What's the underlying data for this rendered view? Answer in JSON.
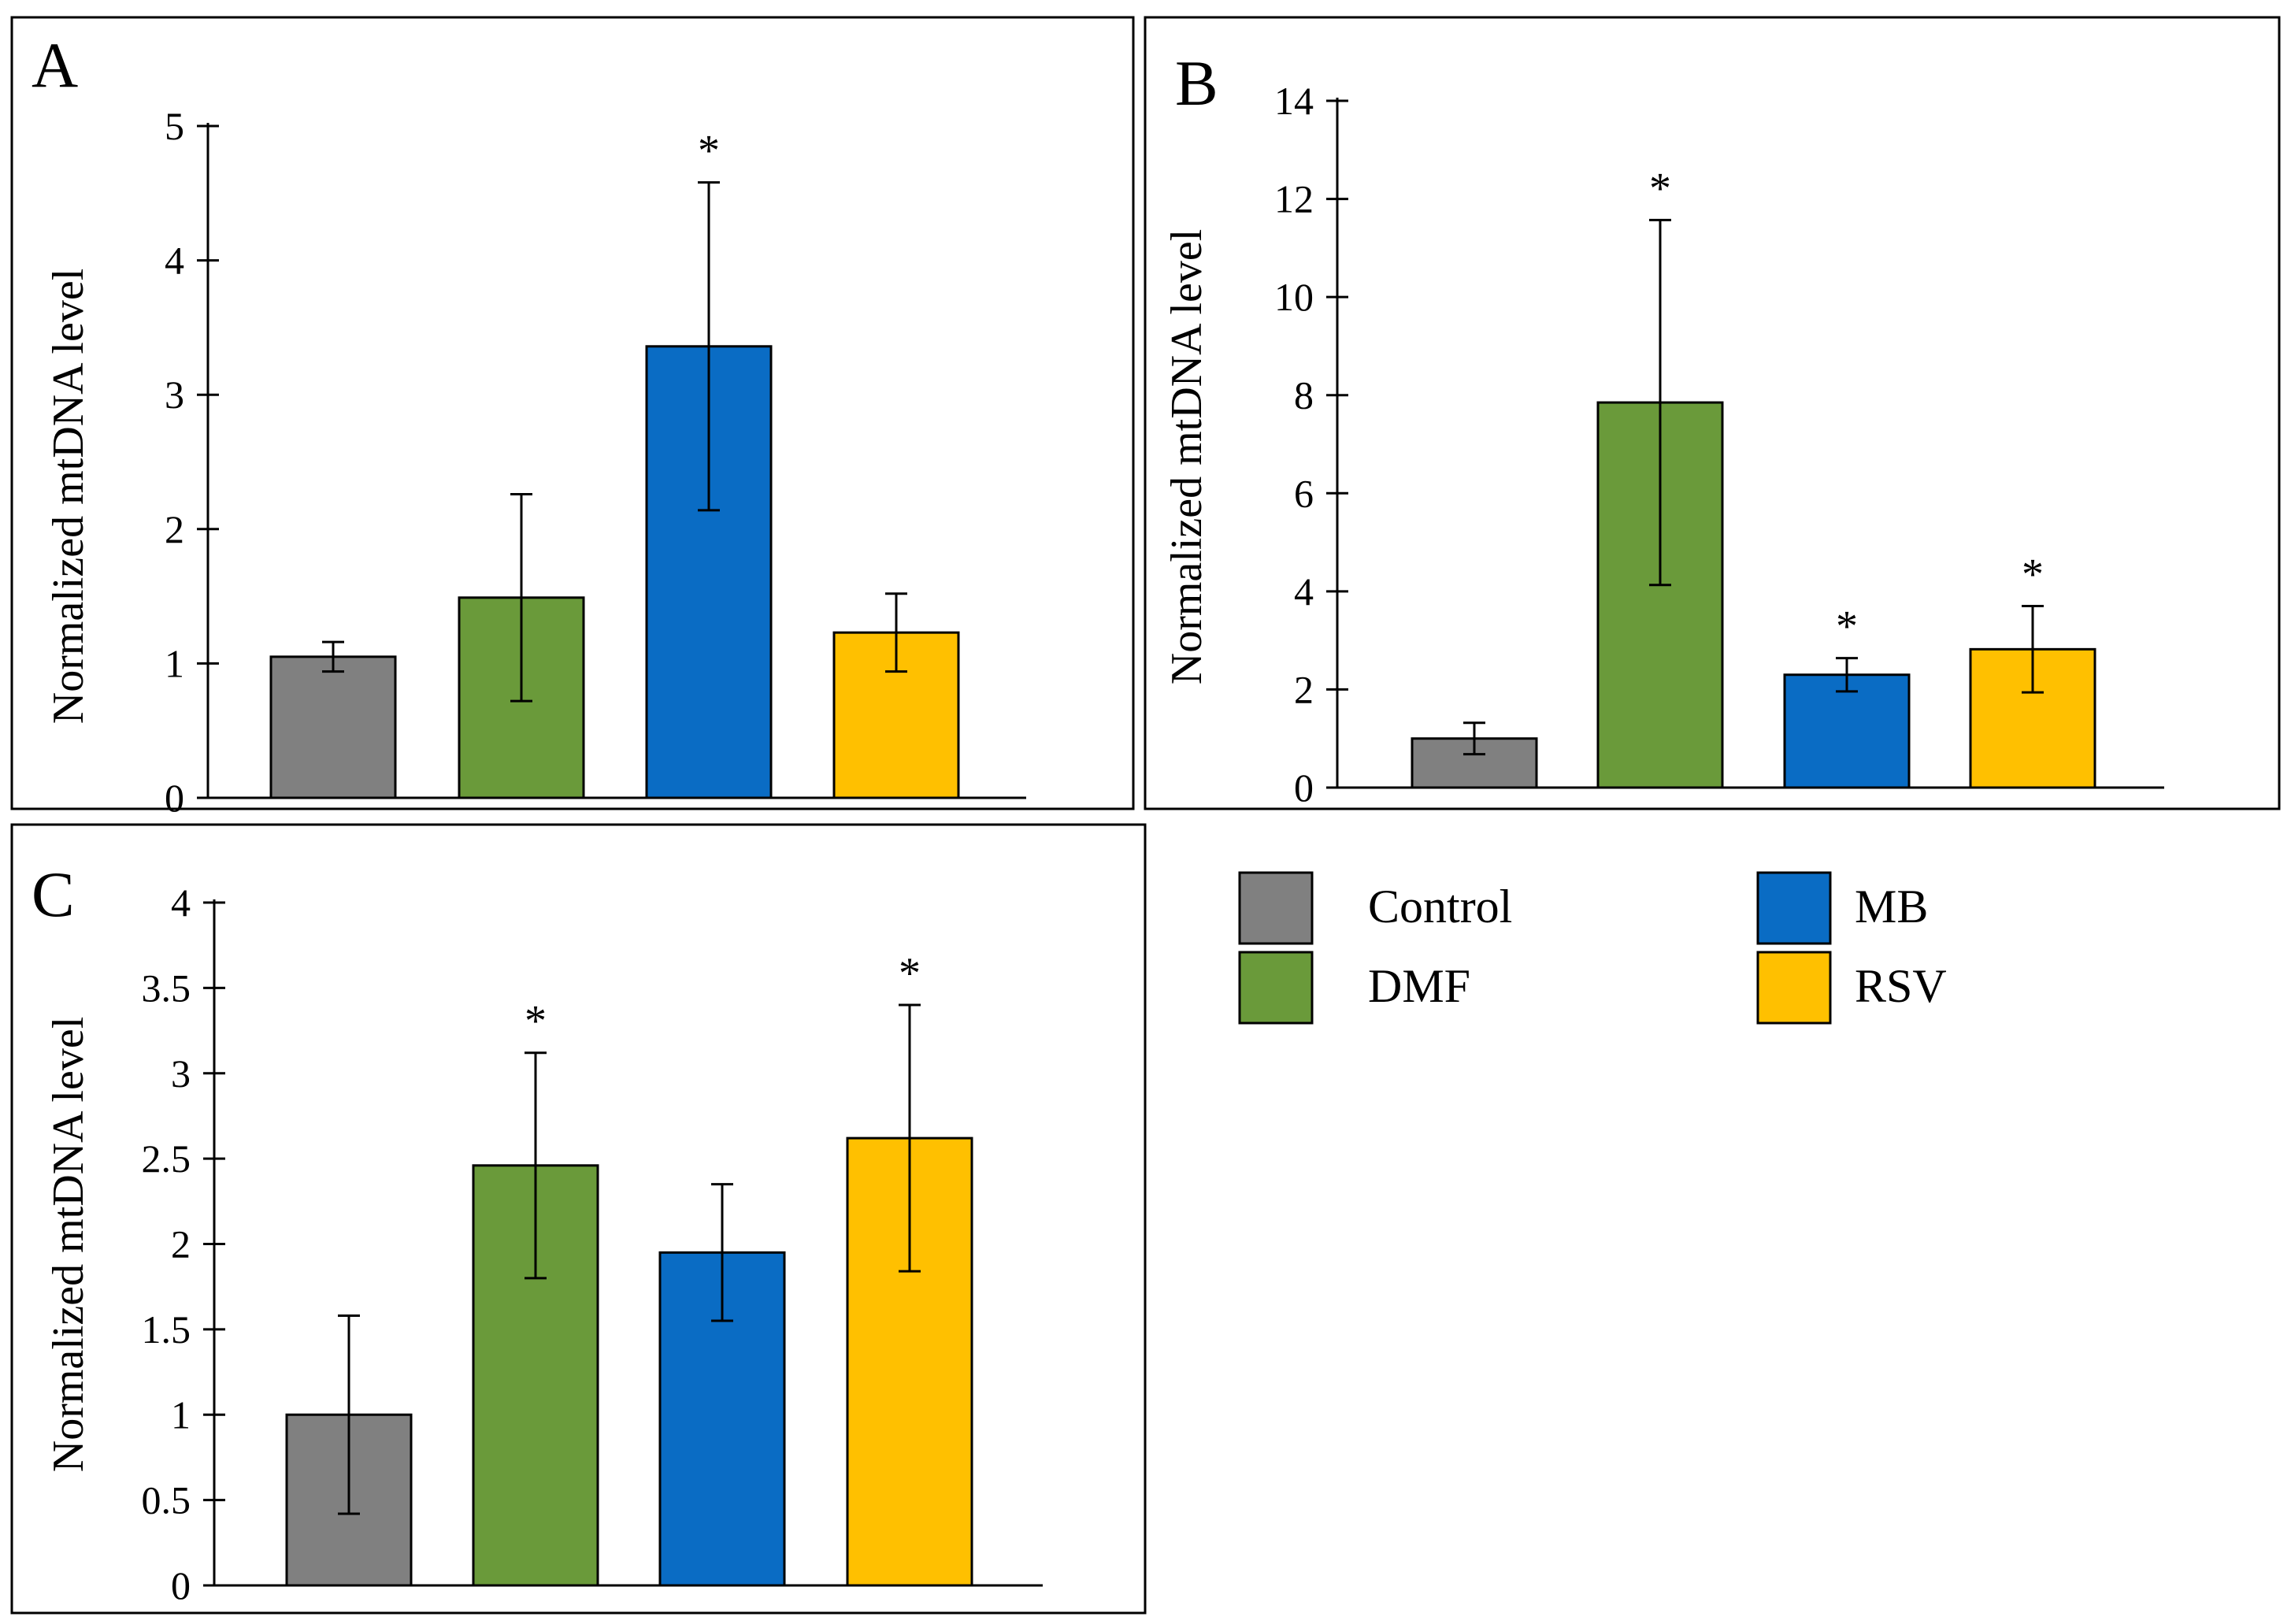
{
  "chart_data": [
    {
      "type": "bar",
      "panel": "A",
      "ylabel": "Normalized mtDNA level",
      "ylim": [
        0,
        5
      ],
      "yticks": [
        0,
        1,
        2,
        3,
        4,
        5
      ],
      "ytick_labels": [
        "0",
        "1",
        "2",
        "3",
        "4",
        "5"
      ],
      "categories": [
        "Control",
        "DMF",
        "MB",
        "RSV"
      ],
      "values": [
        1.05,
        1.49,
        3.36,
        1.23
      ],
      "errors": [
        0.11,
        0.77,
        1.22,
        0.29
      ],
      "significance": [
        "",
        "",
        "*",
        ""
      ]
    },
    {
      "type": "bar",
      "panel": "B",
      "ylabel": "Normalized mtDNA level",
      "ylim": [
        0,
        14
      ],
      "yticks": [
        0,
        2,
        4,
        6,
        8,
        10,
        12,
        14
      ],
      "ytick_labels": [
        "0",
        "2",
        "4",
        "6",
        "8",
        "10",
        "12",
        "14"
      ],
      "categories": [
        "Control",
        "DMF",
        "MB",
        "RSV"
      ],
      "values": [
        1.0,
        7.85,
        2.3,
        2.82
      ],
      "errors": [
        0.32,
        3.72,
        0.34,
        0.88
      ],
      "significance": [
        "",
        "*",
        "*",
        "*"
      ]
    },
    {
      "type": "bar",
      "panel": "C",
      "ylabel": "Normalized mtDNA level",
      "ylim": [
        0,
        4
      ],
      "yticks": [
        0,
        0.5,
        1,
        1.5,
        2,
        2.5,
        3,
        3.5,
        4
      ],
      "ytick_labels": [
        "0",
        "0.5",
        "1",
        "1.5",
        "2",
        "2.5",
        "3",
        "3.5",
        "4"
      ],
      "categories": [
        "Control",
        "DMF",
        "MB",
        "RSV"
      ],
      "values": [
        1.0,
        2.46,
        1.95,
        2.62
      ],
      "errors": [
        0.58,
        0.66,
        0.4,
        0.78
      ],
      "significance": [
        "",
        "*",
        "",
        "*"
      ]
    }
  ],
  "legend": [
    {
      "label": "Control",
      "color": "#808080"
    },
    {
      "label": "DMF",
      "color": "#6a9a3a"
    },
    {
      "label": "MB",
      "color": "#0a6cc4"
    },
    {
      "label": "RSV",
      "color": "#ffc000"
    }
  ]
}
